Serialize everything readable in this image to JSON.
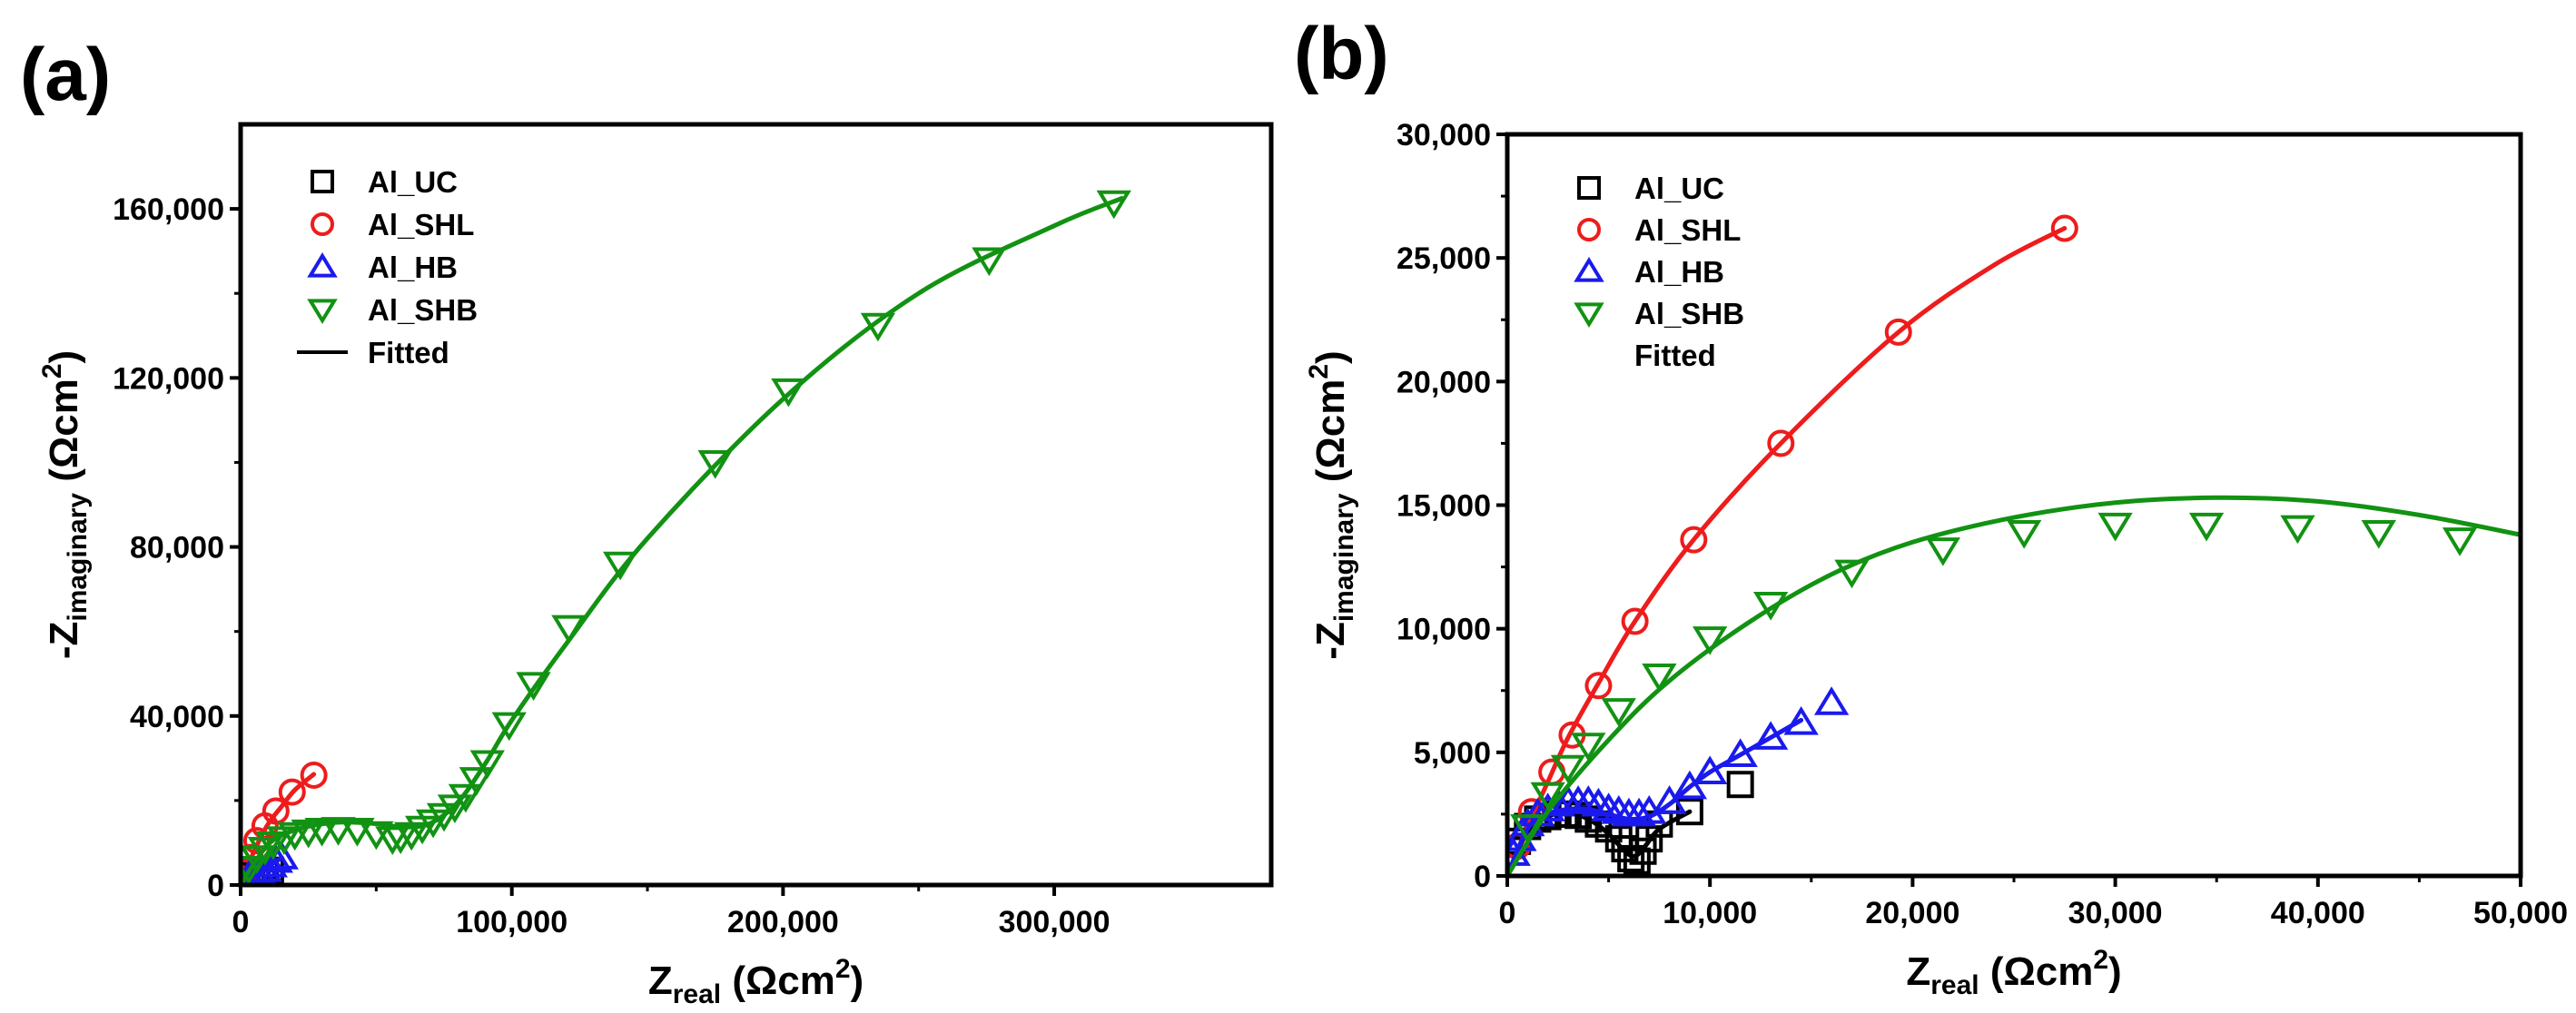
{
  "chart_data": [
    {
      "panel_label": "(a)",
      "type": "scatter",
      "xlabel": {
        "main": "Z",
        "sub": "real",
        "unit": " (Ωcm",
        "sup": "2",
        "close": ")"
      },
      "ylabel": {
        "main": "-Z",
        "sub": "imaginary",
        "unit": " (Ωcm",
        "sup": "2",
        "close": ")"
      },
      "xlim": [
        0,
        380000
      ],
      "ylim": [
        0,
        180000
      ],
      "xticks": [
        0,
        100000,
        200000,
        300000
      ],
      "xtick_labels": [
        "0",
        "100,000",
        "200,000",
        "300,000"
      ],
      "yticks": [
        0,
        40000,
        80000,
        120000,
        160000
      ],
      "ytick_labels": [
        "0",
        "40,000",
        "80,000",
        "120,000",
        "160,000"
      ],
      "legend": {
        "position": "top-left",
        "entries": [
          {
            "label": "Al_UC",
            "marker": "square",
            "color": "#000000"
          },
          {
            "label": "Al_SHL",
            "marker": "circle",
            "color": "#ee1c1c"
          },
          {
            "label": "Al_HB",
            "marker": "triangle-up",
            "color": "#1a1aee"
          },
          {
            "label": "Al_SHB",
            "marker": "triangle-down",
            "color": "#129212"
          },
          {
            "label": "Fitted",
            "marker": "line",
            "color": "#000000"
          }
        ]
      },
      "series": [
        {
          "name": "Al_UC",
          "marker": "square",
          "color": "#000000",
          "x": [
            2000,
            4000,
            6000,
            8000,
            9000,
            11000
          ],
          "y": [
            1500,
            2200,
            2000,
            1000,
            2400,
            3500
          ],
          "fit": null
        },
        {
          "name": "Al_SHL",
          "marker": "circle",
          "color": "#ee1c1c",
          "x": [
            1500,
            3500,
            6000,
            9000,
            13000,
            19000,
            27000
          ],
          "y": [
            3000,
            6500,
            10500,
            14000,
            17500,
            22000,
            26000
          ],
          "fit": {
            "x": [
              0,
              5000,
              10000,
              15000,
              20000,
              27000
            ],
            "y": [
              0,
              8000,
              14300,
              18500,
              22500,
              26200
            ]
          }
        },
        {
          "name": "Al_HB",
          "marker": "triangle-up",
          "color": "#1a1aee",
          "x": [
            3000,
            5000,
            7000,
            9000,
            11000,
            13000,
            15000
          ],
          "y": [
            2000,
            2800,
            3000,
            3600,
            4700,
            5800,
            6600
          ],
          "fit": {
            "x": [
              0,
              4000,
              7000,
              11000,
              15000
            ],
            "y": [
              0,
              2500,
              2900,
              4700,
              6400
            ]
          }
        },
        {
          "name": "Al_SHB",
          "marker": "triangle-down",
          "color": "#129212",
          "x": [
            3000,
            6000,
            9000,
            12000,
            16000,
            20000,
            25000,
            30000,
            36000,
            43000,
            50000,
            56000,
            59000,
            63000,
            67000,
            71000,
            75000,
            79000,
            83000,
            87000,
            91000,
            99000,
            108000,
            121000,
            140000,
            175000,
            202000,
            235000,
            276000,
            322000
          ],
          "y": [
            4000,
            6500,
            8500,
            9800,
            11000,
            12000,
            12600,
            13000,
            13200,
            13000,
            12200,
            11000,
            11200,
            12000,
            13500,
            15000,
            16500,
            18500,
            21000,
            25000,
            29000,
            38000,
            47500,
            61000,
            76000,
            100000,
            117000,
            132500,
            148000,
            161500
          ],
          "fit": {
            "x": [
              0,
              10000,
              20000,
              35000,
              50000,
              60000,
              70000,
              80000,
              90000,
              100000,
              120000,
              150000,
              200000,
              250000,
              300000,
              325000
            ],
            "y": [
              0,
              9500,
              13000,
              14800,
              14500,
              13700,
              14600,
              19500,
              28500,
              39000,
              57000,
              82000,
              115000,
              140000,
              156000,
              162500
            ]
          }
        }
      ]
    },
    {
      "panel_label": "(b)",
      "type": "scatter",
      "xlabel": {
        "main": "Z",
        "sub": "real",
        "unit": " (Ωcm",
        "sup": "2",
        "close": ")"
      },
      "ylabel": {
        "main": "-Z",
        "sub": "imaginary",
        "unit": " (Ωcm",
        "sup": "2",
        "close": ")"
      },
      "xlim": [
        0,
        50000
      ],
      "ylim": [
        0,
        30000
      ],
      "xticks": [
        0,
        10000,
        20000,
        30000,
        40000,
        50000
      ],
      "xtick_labels": [
        "0",
        "10,000",
        "20,000",
        "30,000",
        "40,000",
        "50,000"
      ],
      "yticks": [
        0,
        5000,
        10000,
        15000,
        20000,
        25000,
        30000
      ],
      "ytick_labels": [
        "0",
        "5,000",
        "10,000",
        "15,000",
        "20,000",
        "25,000",
        "30,000"
      ],
      "legend": {
        "position": "top-left",
        "entries": [
          {
            "label": "Al_UC",
            "marker": "square",
            "color": "#000000"
          },
          {
            "label": "Al_SHL",
            "marker": "circle",
            "color": "#ee1c1c"
          },
          {
            "label": "Al_HB",
            "marker": "triangle-up",
            "color": "#1a1aee"
          },
          {
            "label": "Al_SHB",
            "marker": "triangle-down",
            "color": "#129212"
          },
          {
            "label": "Fitted",
            "marker": "none",
            "color": "#000000"
          }
        ]
      },
      "series": [
        {
          "name": "Al_UC",
          "marker": "square",
          "color": "#000000",
          "x": [
            500,
            1000,
            1500,
            2000,
            2500,
            3000,
            3500,
            4000,
            4500,
            5000,
            5500,
            5800,
            6100,
            6400,
            6700,
            7000,
            7500,
            9000,
            11500
          ],
          "y": [
            1400,
            2000,
            2300,
            2400,
            2500,
            2500,
            2450,
            2300,
            2100,
            1900,
            1500,
            1100,
            700,
            600,
            1000,
            1500,
            2100,
            2600,
            3700
          ],
          "fit": {
            "x": [
              0,
              1000,
              2000,
              3000,
              4000,
              5000,
              5800,
              6300,
              6800,
              7500,
              9000
            ],
            "y": [
              0,
              1800,
              2400,
              2550,
              2300,
              1700,
              1000,
              800,
              1200,
              1900,
              2600
            ]
          }
        },
        {
          "name": "Al_SHL",
          "marker": "circle",
          "color": "#ee1c1c",
          "x": [
            500,
            1200,
            2200,
            3200,
            4500,
            6300,
            9200,
            13500,
            19300,
            27500
          ],
          "y": [
            1200,
            2600,
            4200,
            5700,
            7700,
            10300,
            13600,
            17500,
            22000,
            26200
          ],
          "fit": {
            "x": [
              0,
              1000,
              2000,
              3000,
              4500,
              6300,
              9200,
              13500,
              19300,
              24000,
              27500
            ],
            "y": [
              0,
              2000,
              3800,
              5600,
              7800,
              10300,
              13600,
              17500,
              22000,
              24700,
              26200
            ]
          }
        },
        {
          "name": "Al_HB",
          "marker": "triangle-up",
          "color": "#1a1aee",
          "x": [
            300,
            600,
            1000,
            1500,
            2000,
            2500,
            3000,
            3500,
            4000,
            4500,
            5000,
            5500,
            6000,
            6500,
            7000,
            8000,
            9000,
            10000,
            11500,
            13000,
            14500,
            16000
          ],
          "y": [
            900,
            1500,
            2100,
            2500,
            2700,
            2900,
            3000,
            3000,
            3000,
            2900,
            2700,
            2600,
            2500,
            2500,
            2600,
            3000,
            3600,
            4200,
            4900,
            5600,
            6200,
            7000
          ],
          "fit": {
            "x": [
              0,
              1000,
              2000,
              3000,
              4000,
              5000,
              6000,
              7000,
              8000,
              9000,
              10000,
              11500,
              13000,
              14500
            ],
            "y": [
              0,
              1900,
              2500,
              2700,
              2700,
              2500,
              2300,
              2400,
              2900,
              3600,
              4200,
              4900,
              5600,
              6300
            ]
          }
        },
        {
          "name": "Al_SHB",
          "marker": "triangle-down",
          "color": "#129212",
          "x": [
            1000,
            2000,
            3000,
            4000,
            5500,
            7500,
            10000,
            13000,
            17000,
            21500,
            25500,
            30000,
            34500,
            39000,
            43000,
            47000
          ],
          "y": [
            2000,
            3300,
            4400,
            5300,
            6700,
            8100,
            9600,
            11000,
            12300,
            13200,
            13900,
            14200,
            14200,
            14100,
            13900,
            13600
          ],
          "fit": {
            "x": [
              0,
              2000,
              5000,
              8000,
              12000,
              16000,
              20000,
              25000,
              30000,
              35000,
              40000,
              45000,
              50000
            ],
            "y": [
              0,
              2600,
              5500,
              7900,
              10300,
              12200,
              13500,
              14500,
              15100,
              15300,
              15150,
              14600,
              13800
            ]
          }
        }
      ]
    }
  ]
}
